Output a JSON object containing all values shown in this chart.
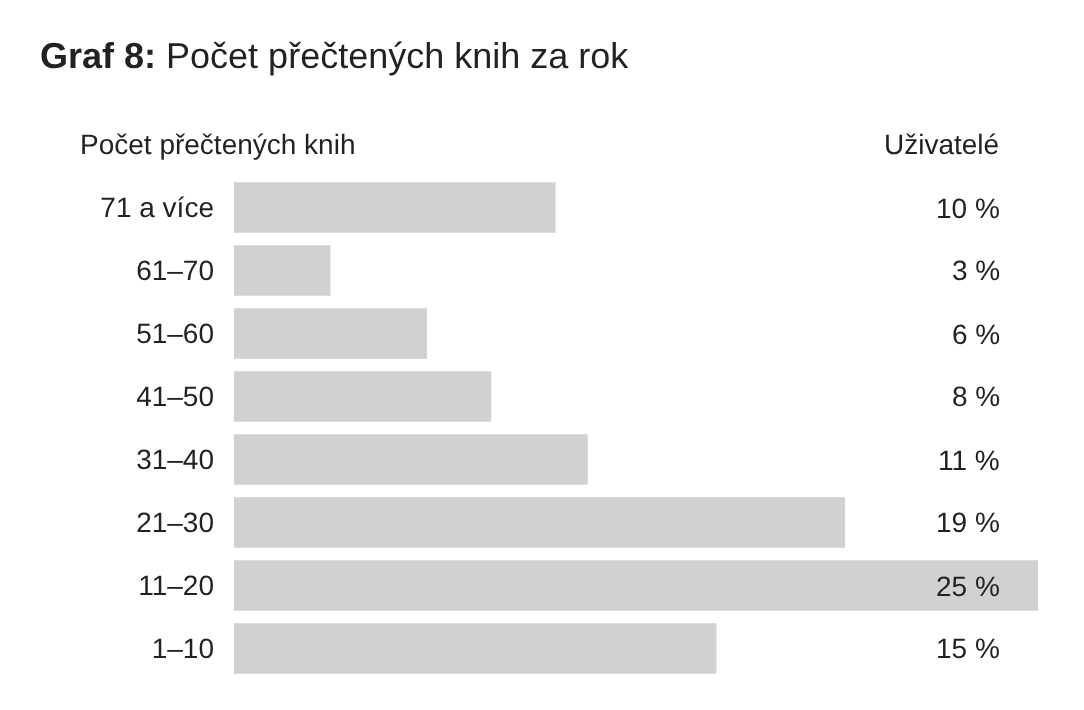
{
  "chart_data": {
    "type": "bar",
    "orientation": "horizontal",
    "title": "Graf 8: Počet přečtených knih za rok",
    "ylabel": "Počet přečtených knih",
    "annotations": [
      "Uživatelé"
    ],
    "categories": [
      "71 a více",
      "61–70",
      "51–60",
      "41–50",
      "31–40",
      "21–30",
      "11–20",
      "1–10"
    ],
    "values": [
      10,
      3,
      6,
      8,
      11,
      19,
      25,
      15
    ],
    "value_labels": [
      "10 %",
      "3 %",
      "6 %",
      "8 %",
      "11 %",
      "19 %",
      "25 %",
      "15 %"
    ],
    "color": "#d1d1d1"
  }
}
